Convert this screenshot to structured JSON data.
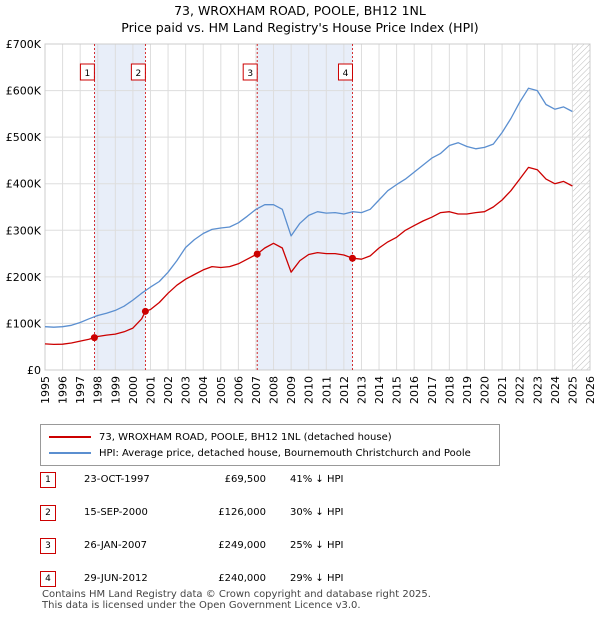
{
  "title_line1": "73, WROXHAM ROAD, POOLE, BH12 1NL",
  "title_line2": "Price paid vs. HM Land Registry's House Price Index (HPI)",
  "colors": {
    "price_paid": "#cc0000",
    "hpi": "#5b8fd0",
    "shade": "#e8eef9",
    "grid": "#dddddd"
  },
  "legend": {
    "price_paid_label": "73, WROXHAM ROAD, POOLE, BH12 1NL (detached house)",
    "hpi_label": "HPI: Average price, detached house, Bournemouth Christchurch and Poole"
  },
  "sales": [
    {
      "num": "1",
      "date": "23-OCT-1997",
      "price": "£69,500",
      "delta": "41% ↓ HPI"
    },
    {
      "num": "2",
      "date": "15-SEP-2000",
      "price": "£126,000",
      "delta": "30% ↓ HPI"
    },
    {
      "num": "3",
      "date": "26-JAN-2007",
      "price": "£249,000",
      "delta": "25% ↓ HPI"
    },
    {
      "num": "4",
      "date": "29-JUN-2012",
      "price": "£240,000",
      "delta": "29% ↓ HPI"
    }
  ],
  "footer_line1": "Contains HM Land Registry data © Crown copyright and database right 2025.",
  "footer_line2": "This data is licensed under the Open Government Licence v3.0.",
  "chart_data": {
    "type": "line",
    "title": "Price paid vs. HM Land Registry's House Price Index (HPI)",
    "xlabel": "",
    "ylabel": "",
    "xlim": [
      1995,
      2026
    ],
    "ylim": [
      0,
      700000
    ],
    "x_ticks": [
      "1995",
      "1996",
      "1997",
      "1998",
      "1999",
      "2000",
      "2001",
      "2002",
      "2003",
      "2004",
      "2005",
      "2006",
      "2007",
      "2008",
      "2009",
      "2010",
      "2011",
      "2012",
      "2013",
      "2014",
      "2015",
      "2016",
      "2017",
      "2018",
      "2019",
      "2020",
      "2021",
      "2022",
      "2023",
      "2024",
      "2025",
      "2026"
    ],
    "y_ticks": [
      {
        "value": 0,
        "label": "£0"
      },
      {
        "value": 100000,
        "label": "£100K"
      },
      {
        "value": 200000,
        "label": "£200K"
      },
      {
        "value": 300000,
        "label": "£300K"
      },
      {
        "value": 400000,
        "label": "£400K"
      },
      {
        "value": 500000,
        "label": "£500K"
      },
      {
        "value": 600000,
        "label": "£600K"
      },
      {
        "value": 700000,
        "label": "£700K"
      }
    ],
    "shaded_ranges": [
      [
        1997.81,
        2000.71
      ],
      [
        2007.07,
        2012.49
      ]
    ],
    "hatch_from": 2025.0,
    "sale_markers": [
      {
        "label": "1",
        "x": 1997.81,
        "y": 69500
      },
      {
        "label": "2",
        "x": 2000.71,
        "y": 126000
      },
      {
        "label": "3",
        "x": 2007.07,
        "y": 249000
      },
      {
        "label": "4",
        "x": 2012.49,
        "y": 240000
      }
    ],
    "series": [
      {
        "name": "73, WROXHAM ROAD, POOLE, BH12 1NL (detached house)",
        "color": "#cc0000",
        "x": [
          1995.0,
          1995.5,
          1996.0,
          1996.5,
          1997.0,
          1997.5,
          1997.81,
          1998.0,
          1998.5,
          1999.0,
          1999.5,
          2000.0,
          2000.5,
          2000.71,
          2001.0,
          2001.5,
          2002.0,
          2002.5,
          2003.0,
          2003.5,
          2004.0,
          2004.5,
          2005.0,
          2005.5,
          2006.0,
          2006.5,
          2007.07,
          2007.5,
          2008.0,
          2008.5,
          2009.0,
          2009.5,
          2010.0,
          2010.5,
          2011.0,
          2011.5,
          2012.0,
          2012.49,
          2013.0,
          2013.5,
          2014.0,
          2014.5,
          2015.0,
          2015.5,
          2016.0,
          2016.5,
          2017.0,
          2017.5,
          2018.0,
          2018.5,
          2019.0,
          2019.5,
          2020.0,
          2020.5,
          2021.0,
          2021.5,
          2022.0,
          2022.5,
          2023.0,
          2023.5,
          2024.0,
          2024.5,
          2025.0
        ],
        "y": [
          56000,
          55000,
          55500,
          58000,
          62000,
          66000,
          69500,
          72000,
          75000,
          77000,
          82000,
          90000,
          110000,
          126000,
          130000,
          145000,
          165000,
          182000,
          195000,
          205000,
          215000,
          222000,
          220000,
          222000,
          228000,
          238000,
          249000,
          262000,
          272000,
          262000,
          210000,
          235000,
          248000,
          252000,
          250000,
          250000,
          247000,
          240000,
          238000,
          245000,
          262000,
          275000,
          285000,
          300000,
          310000,
          320000,
          328000,
          338000,
          340000,
          335000,
          335000,
          338000,
          340000,
          350000,
          365000,
          385000,
          410000,
          435000,
          430000,
          410000,
          400000,
          405000,
          395000
        ]
      },
      {
        "name": "HPI: Average price, detached house, Bournemouth Christchurch and Poole",
        "color": "#5b8fd0",
        "x": [
          1995.0,
          1995.5,
          1996.0,
          1996.5,
          1997.0,
          1997.5,
          1998.0,
          1998.5,
          1999.0,
          1999.5,
          2000.0,
          2000.5,
          2001.0,
          2001.5,
          2002.0,
          2002.5,
          2003.0,
          2003.5,
          2004.0,
          2004.5,
          2005.0,
          2005.5,
          2006.0,
          2006.5,
          2007.0,
          2007.5,
          2008.0,
          2008.5,
          2009.0,
          2009.5,
          2010.0,
          2010.5,
          2011.0,
          2011.5,
          2012.0,
          2012.5,
          2013.0,
          2013.5,
          2014.0,
          2014.5,
          2015.0,
          2015.5,
          2016.0,
          2016.5,
          2017.0,
          2017.5,
          2018.0,
          2018.5,
          2019.0,
          2019.5,
          2020.0,
          2020.5,
          2021.0,
          2021.5,
          2022.0,
          2022.5,
          2023.0,
          2023.5,
          2024.0,
          2024.5,
          2025.0
        ],
        "y": [
          93000,
          92000,
          93000,
          96000,
          102000,
          110000,
          117000,
          122000,
          128000,
          137000,
          150000,
          165000,
          178000,
          190000,
          210000,
          235000,
          263000,
          280000,
          293000,
          302000,
          305000,
          307000,
          316000,
          330000,
          345000,
          355000,
          355000,
          345000,
          288000,
          315000,
          332000,
          340000,
          337000,
          338000,
          335000,
          340000,
          338000,
          345000,
          365000,
          385000,
          398000,
          410000,
          425000,
          440000,
          455000,
          465000,
          482000,
          488000,
          480000,
          475000,
          478000,
          485000,
          510000,
          540000,
          575000,
          605000,
          600000,
          570000,
          560000,
          565000,
          555000
        ]
      }
    ]
  }
}
